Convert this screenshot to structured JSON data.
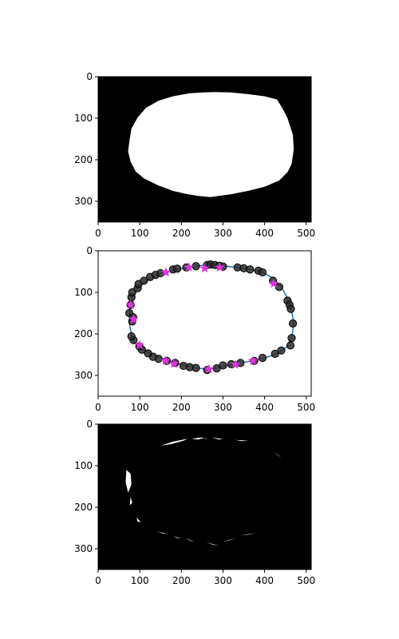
{
  "colors": {
    "background": "#000000",
    "foreground": "#ffffff",
    "contour_line": "#1f77b4",
    "contour_point": "#2b2b2b",
    "contour_point_edge": "#000000",
    "star_marker": "#e62ee6"
  },
  "chart_data": [
    {
      "type": "image",
      "description_kind": "binary mask, white blob on black",
      "xlim": [
        0,
        512
      ],
      "ylim": [
        0,
        350
      ],
      "y_inverted": true,
      "xticks": [
        0,
        100,
        200,
        300,
        400,
        500
      ],
      "yticks": [
        0,
        100,
        200,
        300
      ],
      "grid": false,
      "blob_outline": [
        [
          430,
          55
        ],
        [
          445,
          80
        ],
        [
          455,
          100
        ],
        [
          468,
          140
        ],
        [
          470,
          175
        ],
        [
          465,
          210
        ],
        [
          455,
          230
        ],
        [
          435,
          250
        ],
        [
          400,
          265
        ],
        [
          360,
          275
        ],
        [
          320,
          283
        ],
        [
          290,
          287
        ],
        [
          270,
          290
        ],
        [
          240,
          287
        ],
        [
          210,
          282
        ],
        [
          180,
          275
        ],
        [
          145,
          262
        ],
        [
          110,
          245
        ],
        [
          90,
          228
        ],
        [
          78,
          205
        ],
        [
          72,
          180
        ],
        [
          75,
          155
        ],
        [
          80,
          125
        ],
        [
          95,
          98
        ],
        [
          115,
          75
        ],
        [
          145,
          58
        ],
        [
          180,
          47
        ],
        [
          220,
          40
        ],
        [
          250,
          38
        ],
        [
          280,
          37
        ],
        [
          320,
          38
        ],
        [
          360,
          42
        ],
        [
          400,
          47
        ]
      ]
    },
    {
      "type": "scatter",
      "xlim": [
        0,
        512
      ],
      "ylim": [
        0,
        350
      ],
      "y_inverted": true,
      "xticks": [
        0,
        100,
        200,
        300,
        400,
        500
      ],
      "yticks": [
        0,
        100,
        200,
        300
      ],
      "grid": false,
      "contour_line": [
        [
          80,
          202
        ],
        [
          76,
          180
        ],
        [
          75,
          155
        ],
        [
          77,
          130
        ],
        [
          83,
          108
        ],
        [
          97,
          88
        ],
        [
          117,
          72
        ],
        [
          150,
          55
        ],
        [
          180,
          47
        ],
        [
          220,
          40
        ],
        [
          250,
          35
        ],
        [
          275,
          33
        ],
        [
          300,
          36
        ],
        [
          330,
          40
        ],
        [
          360,
          44
        ],
        [
          390,
          50
        ],
        [
          420,
          65
        ],
        [
          442,
          90
        ],
        [
          458,
          120
        ],
        [
          466,
          150
        ],
        [
          470,
          175
        ],
        [
          466,
          205
        ],
        [
          455,
          230
        ],
        [
          430,
          248
        ],
        [
          400,
          258
        ],
        [
          370,
          265
        ],
        [
          330,
          272
        ],
        [
          290,
          280
        ],
        [
          265,
          285
        ],
        [
          235,
          282
        ],
        [
          205,
          275
        ],
        [
          170,
          266
        ],
        [
          135,
          252
        ],
        [
          105,
          237
        ],
        [
          88,
          222
        ],
        [
          80,
          202
        ]
      ],
      "contour_points": [
        [
          75,
          150
        ],
        [
          78,
          130
        ],
        [
          80,
          112
        ],
        [
          82,
          100
        ],
        [
          95,
          90
        ],
        [
          97,
          80
        ],
        [
          110,
          72
        ],
        [
          125,
          63
        ],
        [
          138,
          58
        ],
        [
          150,
          54
        ],
        [
          180,
          45
        ],
        [
          190,
          43
        ],
        [
          212,
          40
        ],
        [
          235,
          37
        ],
        [
          262,
          34
        ],
        [
          270,
          33
        ],
        [
          280,
          34
        ],
        [
          291,
          36
        ],
        [
          300,
          38
        ],
        [
          335,
          40
        ],
        [
          350,
          42
        ],
        [
          365,
          45
        ],
        [
          385,
          48
        ],
        [
          395,
          52
        ],
        [
          420,
          72
        ],
        [
          435,
          87
        ],
        [
          455,
          120
        ],
        [
          460,
          130
        ],
        [
          463,
          140
        ],
        [
          468,
          175
        ],
        [
          465,
          210
        ],
        [
          462,
          228
        ],
        [
          440,
          240
        ],
        [
          425,
          248
        ],
        [
          395,
          258
        ],
        [
          375,
          265
        ],
        [
          342,
          270
        ],
        [
          320,
          273
        ],
        [
          300,
          276
        ],
        [
          285,
          283
        ],
        [
          262,
          287
        ],
        [
          235,
          282
        ],
        [
          220,
          280
        ],
        [
          205,
          277
        ],
        [
          185,
          270
        ],
        [
          165,
          265
        ],
        [
          145,
          260
        ],
        [
          132,
          255
        ],
        [
          120,
          247
        ],
        [
          105,
          238
        ],
        [
          99,
          230
        ],
        [
          85,
          215
        ],
        [
          80,
          206
        ],
        [
          82,
          170
        ],
        [
          84,
          160
        ]
      ],
      "star_points": [
        [
          163,
          52
        ],
        [
          218,
          40
        ],
        [
          256,
          42
        ],
        [
          292,
          40
        ],
        [
          422,
          79
        ],
        [
          78,
          130
        ],
        [
          85,
          165
        ],
        [
          100,
          227
        ],
        [
          162,
          265
        ],
        [
          182,
          272
        ],
        [
          266,
          285
        ],
        [
          330,
          274
        ],
        [
          372,
          265
        ]
      ]
    },
    {
      "type": "image",
      "description_kind": "binary mask, sparse white fragments on black",
      "xlim": [
        0,
        512
      ],
      "ylim": [
        0,
        350
      ],
      "y_inverted": true,
      "xticks": [
        0,
        100,
        200,
        300,
        400,
        500
      ],
      "yticks": [
        0,
        100,
        200,
        300
      ],
      "grid": false,
      "fragments": [
        [
          [
            150,
            52
          ],
          [
            180,
            42
          ],
          [
            215,
            35
          ],
          [
            205,
            40
          ],
          [
            175,
            48
          ]
        ],
        [
          [
            225,
            35
          ],
          [
            250,
            32
          ],
          [
            265,
            38
          ],
          [
            255,
            33
          ],
          [
            240,
            37
          ]
        ],
        [
          [
            272,
            32
          ],
          [
            300,
            36
          ],
          [
            290,
            37
          ]
        ],
        [
          [
            330,
            38
          ],
          [
            360,
            40
          ],
          [
            345,
            41
          ]
        ],
        [
          [
            420,
            65
          ],
          [
            440,
            80
          ],
          [
            432,
            75
          ]
        ],
        [
          [
            68,
            110
          ],
          [
            78,
            120
          ],
          [
            80,
            145
          ],
          [
            72,
            165
          ],
          [
            66,
            140
          ]
        ],
        [
          [
            78,
            175
          ],
          [
            82,
            190
          ],
          [
            76,
            195
          ]
        ],
        [
          [
            92,
            225
          ],
          [
            102,
            235
          ],
          [
            95,
            235
          ]
        ],
        [
          [
            140,
            258
          ],
          [
            170,
            265
          ],
          [
            155,
            263
          ]
        ],
        [
          [
            180,
            270
          ],
          [
            200,
            275
          ],
          [
            190,
            274
          ]
        ],
        [
          [
            212,
            275
          ],
          [
            230,
            283
          ],
          [
            220,
            280
          ]
        ],
        [
          [
            260,
            285
          ],
          [
            290,
            292
          ],
          [
            275,
            290
          ]
        ],
        [
          [
            300,
            283
          ],
          [
            330,
            275
          ],
          [
            315,
            280
          ]
        ],
        [
          [
            340,
            268
          ],
          [
            380,
            262
          ],
          [
            360,
            266
          ]
        ]
      ]
    }
  ]
}
